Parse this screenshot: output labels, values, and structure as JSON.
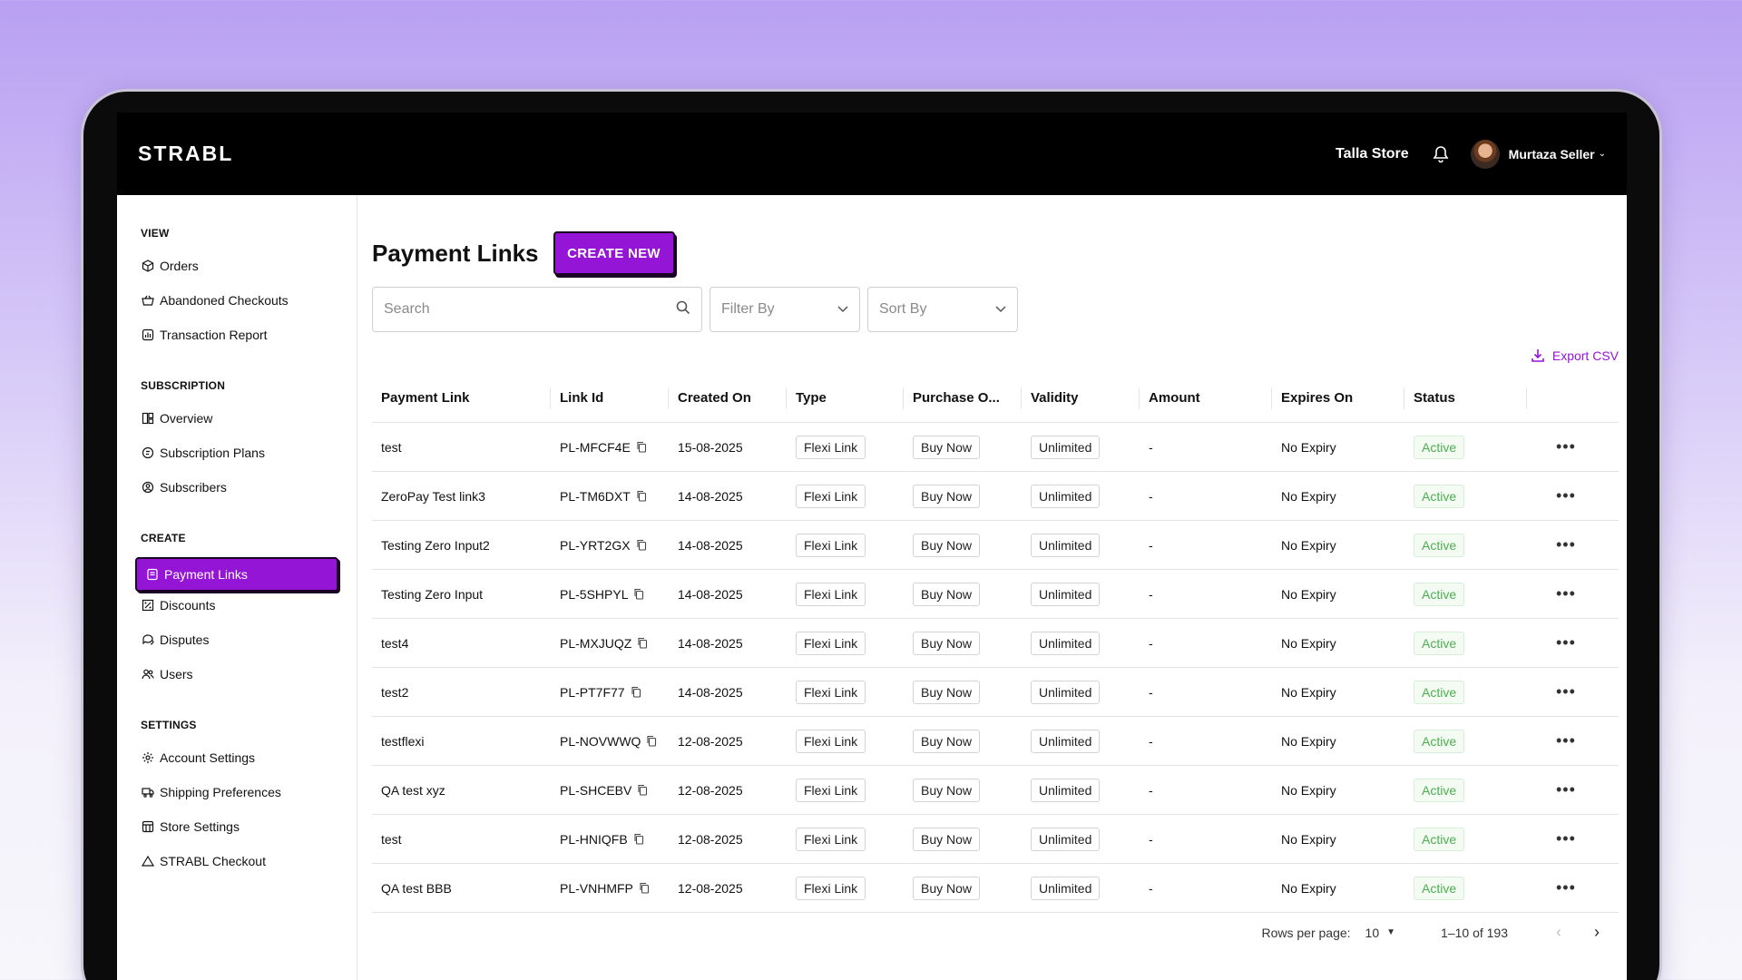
{
  "header": {
    "logo": "STRABL",
    "store_name": "Talla Store",
    "user_name": "Murtaza Seller"
  },
  "sidebar": {
    "sections": [
      {
        "title": "VIEW",
        "items": [
          {
            "label": "Orders",
            "icon": "box-icon"
          },
          {
            "label": "Abandoned Checkouts",
            "icon": "basket-icon"
          },
          {
            "label": "Transaction Report",
            "icon": "report-icon"
          }
        ]
      },
      {
        "title": "SUBSCRIPTION",
        "items": [
          {
            "label": "Overview",
            "icon": "overview-icon"
          },
          {
            "label": "Subscription Plans",
            "icon": "plans-icon"
          },
          {
            "label": "Subscribers",
            "icon": "subscribers-icon"
          }
        ]
      },
      {
        "title": "CREATE",
        "items": [
          {
            "label": "Payment Links",
            "icon": "link-icon"
          },
          {
            "label": "Discounts",
            "icon": "discount-icon"
          },
          {
            "label": "Disputes",
            "icon": "dispute-icon"
          },
          {
            "label": "Users",
            "icon": "users-icon"
          }
        ]
      },
      {
        "title": "SETTINGS",
        "items": [
          {
            "label": "Account Settings",
            "icon": "gear-icon"
          },
          {
            "label": "Shipping Preferences",
            "icon": "truck-icon"
          },
          {
            "label": "Store Settings",
            "icon": "store-icon"
          },
          {
            "label": "STRABL Checkout",
            "icon": "checkout-icon"
          }
        ]
      }
    ],
    "active": "Payment Links"
  },
  "main": {
    "title": "Payment Links",
    "create_label": "CREATE NEW",
    "search_placeholder": "Search",
    "filter_label": "Filter By",
    "sort_label": "Sort By",
    "export_label": "Export CSV",
    "columns": [
      "Payment Link",
      "Link Id",
      "Created On",
      "Type",
      "Purchase O...",
      "Validity",
      "Amount",
      "Expires On",
      "Status",
      ""
    ],
    "rows": [
      {
        "name": "test",
        "id": "PL-MFCF4E",
        "created": "15-08-2025",
        "type": "Flexi Link",
        "purchase": "Buy Now",
        "validity": "Unlimited",
        "amount": "-",
        "expires": "No Expiry",
        "status": "Active"
      },
      {
        "name": "ZeroPay Test link3",
        "id": "PL-TM6DXT",
        "created": "14-08-2025",
        "type": "Flexi Link",
        "purchase": "Buy Now",
        "validity": "Unlimited",
        "amount": "-",
        "expires": "No Expiry",
        "status": "Active"
      },
      {
        "name": "Testing Zero Input2",
        "id": "PL-YRT2GX",
        "created": "14-08-2025",
        "type": "Flexi Link",
        "purchase": "Buy Now",
        "validity": "Unlimited",
        "amount": "-",
        "expires": "No Expiry",
        "status": "Active"
      },
      {
        "name": "Testing Zero Input",
        "id": "PL-5SHPYL",
        "created": "14-08-2025",
        "type": "Flexi Link",
        "purchase": "Buy Now",
        "validity": "Unlimited",
        "amount": "-",
        "expires": "No Expiry",
        "status": "Active"
      },
      {
        "name": "test4",
        "id": "PL-MXJUQZ",
        "created": "14-08-2025",
        "type": "Flexi Link",
        "purchase": "Buy Now",
        "validity": "Unlimited",
        "amount": "-",
        "expires": "No Expiry",
        "status": "Active"
      },
      {
        "name": "test2",
        "id": "PL-PT7F77",
        "created": "14-08-2025",
        "type": "Flexi Link",
        "purchase": "Buy Now",
        "validity": "Unlimited",
        "amount": "-",
        "expires": "No Expiry",
        "status": "Active"
      },
      {
        "name": "testflexi",
        "id": "PL-NOVWWQ",
        "created": "12-08-2025",
        "type": "Flexi Link",
        "purchase": "Buy Now",
        "validity": "Unlimited",
        "amount": "-",
        "expires": "No Expiry",
        "status": "Active"
      },
      {
        "name": "QA test xyz",
        "id": "PL-SHCEBV",
        "created": "12-08-2025",
        "type": "Flexi Link",
        "purchase": "Buy Now",
        "validity": "Unlimited",
        "amount": "-",
        "expires": "No Expiry",
        "status": "Active"
      },
      {
        "name": "test",
        "id": "PL-HNIQFB",
        "created": "12-08-2025",
        "type": "Flexi Link",
        "purchase": "Buy Now",
        "validity": "Unlimited",
        "amount": "-",
        "expires": "No Expiry",
        "status": "Active"
      },
      {
        "name": "QA test BBB",
        "id": "PL-VNHMFP",
        "created": "12-08-2025",
        "type": "Flexi Link",
        "purchase": "Buy Now",
        "validity": "Unlimited",
        "amount": "-",
        "expires": "No Expiry",
        "status": "Active"
      }
    ],
    "row_menu_glyph": "•••"
  },
  "pagination": {
    "rows_per_page_label": "Rows per page:",
    "rows_per_page": "10",
    "range": "1–10 of 193"
  },
  "colors": {
    "accent": "#9515d6",
    "active_status": "#4caf50"
  }
}
